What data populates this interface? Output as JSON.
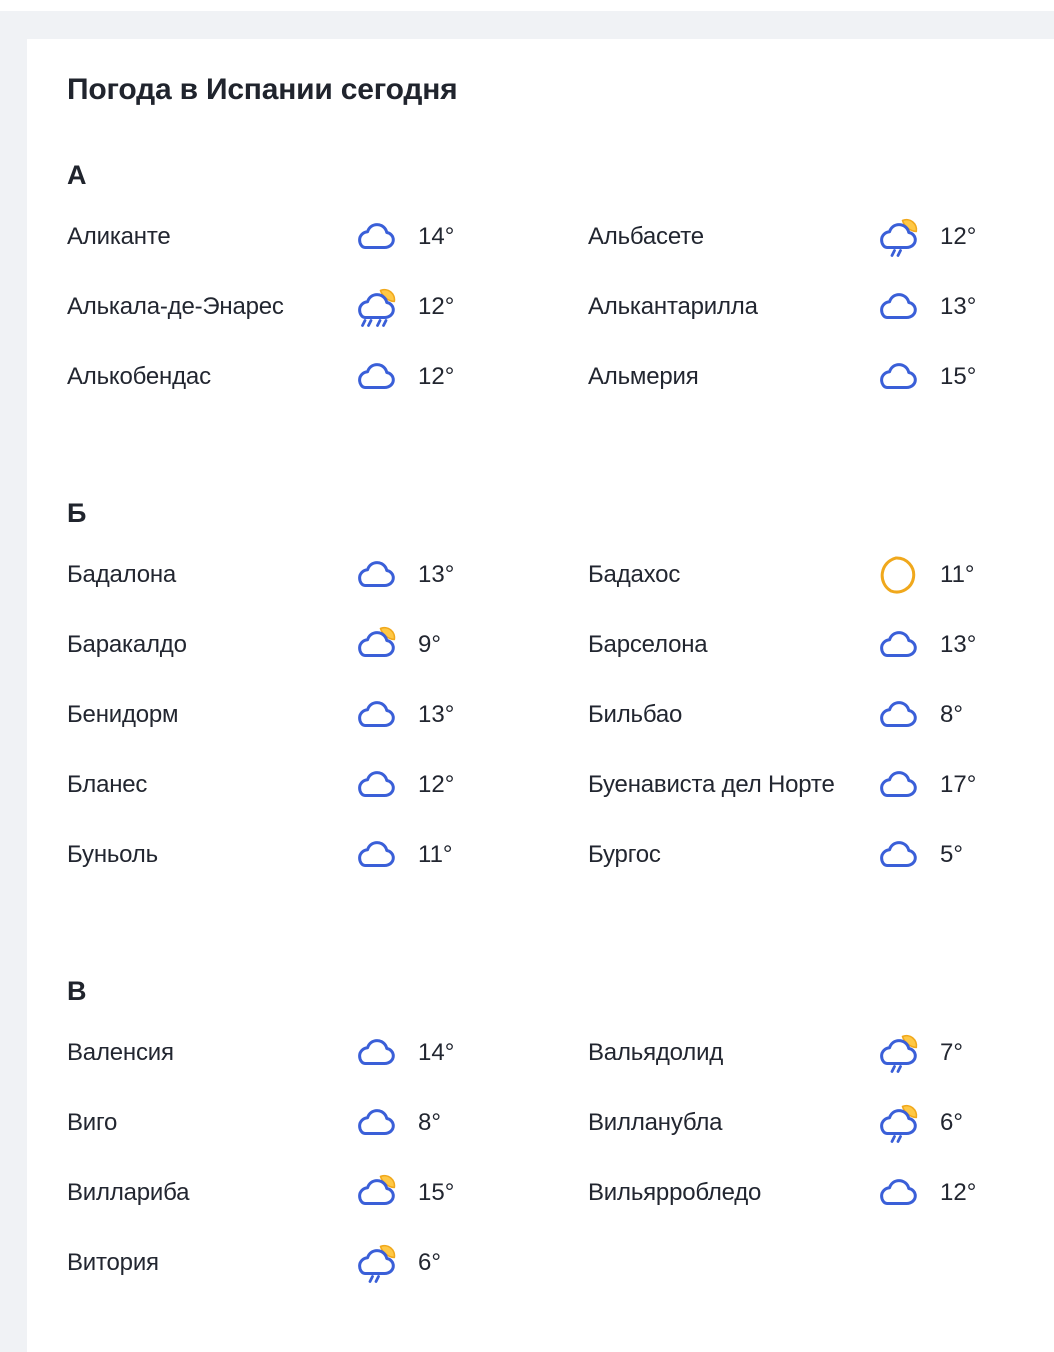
{
  "page": {
    "title": "Погода в Испании сегодня"
  },
  "colors": {
    "page_bg": "#F0F2F5",
    "card_bg": "#FFFFFF",
    "text": "#222630",
    "icon_blue": "#3A5FD8",
    "moon_stroke": "#F0A81C",
    "moon_fill": "#FFC845"
  },
  "sections": [
    {
      "letter": "А",
      "rows": [
        [
          {
            "name": "Аликанте",
            "icon": "cloud",
            "temp": "14°"
          },
          {
            "name": "Альбасете",
            "icon": "cloud-moon-light-rain",
            "temp": "12°"
          }
        ],
        [
          {
            "name": "Алькала-де-Энарес",
            "icon": "cloud-moon-rain",
            "temp": "12°"
          },
          {
            "name": "Алькантарилла",
            "icon": "cloud",
            "temp": "13°"
          }
        ],
        [
          {
            "name": "Алькобендас",
            "icon": "cloud",
            "temp": "12°"
          },
          {
            "name": "Альмерия",
            "icon": "cloud",
            "temp": "15°"
          }
        ]
      ]
    },
    {
      "letter": "Б",
      "rows": [
        [
          {
            "name": "Бадалона",
            "icon": "cloud",
            "temp": "13°"
          },
          {
            "name": "Бадахос",
            "icon": "moon",
            "temp": "11°"
          }
        ],
        [
          {
            "name": "Баракалдо",
            "icon": "cloud-moon",
            "temp": "9°"
          },
          {
            "name": "Барселона",
            "icon": "cloud",
            "temp": "13°"
          }
        ],
        [
          {
            "name": "Бенидорм",
            "icon": "cloud",
            "temp": "13°"
          },
          {
            "name": "Бильбао",
            "icon": "cloud",
            "temp": "8°"
          }
        ],
        [
          {
            "name": "Бланес",
            "icon": "cloud",
            "temp": "12°"
          },
          {
            "name": "Буенависта дел Норте",
            "icon": "cloud",
            "temp": "17°"
          }
        ],
        [
          {
            "name": "Буньоль",
            "icon": "cloud",
            "temp": "11°"
          },
          {
            "name": "Бургос",
            "icon": "cloud",
            "temp": "5°"
          }
        ]
      ]
    },
    {
      "letter": "В",
      "rows": [
        [
          {
            "name": "Валенсия",
            "icon": "cloud",
            "temp": "14°"
          },
          {
            "name": "Вальядолид",
            "icon": "cloud-moon-light-rain",
            "temp": "7°"
          }
        ],
        [
          {
            "name": "Виго",
            "icon": "cloud",
            "temp": "8°"
          },
          {
            "name": "Вилланубла",
            "icon": "cloud-moon-light-rain",
            "temp": "6°"
          }
        ],
        [
          {
            "name": "Виллариба",
            "icon": "cloud-moon",
            "temp": "15°"
          },
          {
            "name": "Вильярробледо",
            "icon": "cloud",
            "temp": "12°"
          }
        ],
        [
          {
            "name": "Витория",
            "icon": "cloud-moon-light-rain",
            "temp": "6°"
          }
        ]
      ]
    }
  ]
}
